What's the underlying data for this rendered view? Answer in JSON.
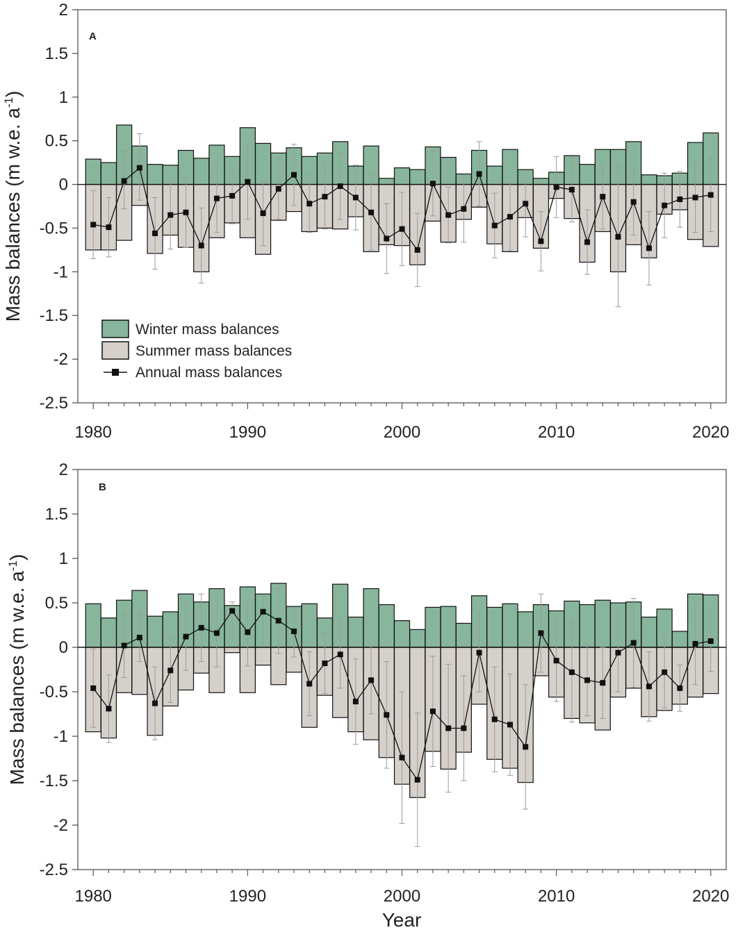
{
  "figure": {
    "colors": {
      "winter": "#88b69d",
      "summer": "#d6d0cb",
      "annual": "#111111",
      "error": "#9a9a9a",
      "axis": "#555555"
    },
    "legend": {
      "winter": "Winter mass balances",
      "summer": "Summer mass balances",
      "annual": "Annual mass balances"
    },
    "x_title": "Year"
  },
  "chart_data": [
    {
      "type": "bar",
      "panel_label": "A",
      "ylabel": "Mass balances (m w.e. a-1)",
      "ylabel_parts": [
        "Mass balances (m w.e. a",
        "-1",
        ")"
      ],
      "xlabel": "",
      "xlim": [
        1979,
        2021
      ],
      "ylim": [
        -2.5,
        2
      ],
      "x_ticks": [
        "1980",
        "1990",
        "2000",
        "2010",
        "2020"
      ],
      "y_ticks": [
        "2",
        "1.5",
        "1",
        "0.5",
        "0",
        "-0.5",
        "-1",
        "-1.5",
        "-2",
        "-2.5"
      ],
      "years": [
        1980,
        1981,
        1982,
        1983,
        1984,
        1985,
        1986,
        1987,
        1988,
        1989,
        1990,
        1991,
        1992,
        1993,
        1994,
        1995,
        1996,
        1997,
        1998,
        1999,
        2000,
        2001,
        2002,
        2003,
        2004,
        2005,
        2006,
        2007,
        2008,
        2009,
        2010,
        2011,
        2012,
        2013,
        2014,
        2015,
        2016,
        2017,
        2018,
        2019,
        2020
      ],
      "series": [
        {
          "name": "Winter mass balances",
          "kind": "bar-positive",
          "values": [
            0.29,
            0.25,
            0.68,
            0.44,
            0.23,
            0.22,
            0.39,
            0.3,
            0.45,
            0.32,
            0.65,
            0.47,
            0.36,
            0.42,
            0.32,
            0.36,
            0.49,
            0.21,
            0.44,
            0.07,
            0.19,
            0.17,
            0.43,
            0.31,
            0.12,
            0.39,
            0.21,
            0.4,
            0.17,
            0.07,
            0.14,
            0.33,
            0.23,
            0.4,
            0.4,
            0.49,
            0.11,
            0.1,
            0.13,
            0.48,
            0.59
          ]
        },
        {
          "name": "Summer mass balances",
          "kind": "bar-negative",
          "values": [
            -0.75,
            -0.75,
            -0.64,
            -0.24,
            -0.79,
            -0.58,
            -0.72,
            -1.0,
            -0.61,
            -0.44,
            -0.61,
            -0.8,
            -0.41,
            -0.31,
            -0.54,
            -0.5,
            -0.51,
            -0.37,
            -0.77,
            -0.69,
            -0.7,
            -0.92,
            -0.42,
            -0.66,
            -0.4,
            -0.26,
            -0.68,
            -0.77,
            -0.38,
            -0.73,
            -0.16,
            -0.39,
            -0.89,
            -0.54,
            -1.0,
            -0.69,
            -0.84,
            -0.34,
            -0.29,
            -0.63,
            -0.71
          ]
        },
        {
          "name": "Annual mass balances",
          "kind": "line",
          "values": [
            -0.46,
            -0.49,
            0.04,
            0.19,
            -0.56,
            -0.35,
            -0.32,
            -0.7,
            -0.16,
            -0.13,
            0.03,
            -0.33,
            -0.05,
            0.11,
            -0.22,
            -0.14,
            -0.02,
            -0.15,
            -0.32,
            -0.62,
            -0.51,
            -0.75,
            0.01,
            -0.35,
            -0.28,
            0.12,
            -0.47,
            -0.37,
            -0.22,
            -0.65,
            -0.03,
            -0.06,
            -0.66,
            -0.14,
            -0.6,
            -0.2,
            -0.73,
            -0.24,
            -0.17,
            -0.15,
            -0.12
          ]
        }
      ],
      "error_bars": [
        {
          "year": 1980,
          "low": -0.85,
          "high": -0.07
        },
        {
          "year": 1981,
          "low": -0.83,
          "high": -0.15
        },
        {
          "year": 1982,
          "low": -0.28,
          "high": 0.38
        },
        {
          "year": 1983,
          "low": -0.18,
          "high": 0.58
        },
        {
          "year": 1984,
          "low": -0.97,
          "high": -0.15
        },
        {
          "year": 1985,
          "low": -0.74,
          "high": 0.04
        },
        {
          "year": 1986,
          "low": -0.72,
          "high": 0.08
        },
        {
          "year": 1987,
          "low": -1.13,
          "high": -0.27
        },
        {
          "year": 1988,
          "low": -0.55,
          "high": 0.23
        },
        {
          "year": 1989,
          "low": -0.45,
          "high": 0.19
        },
        {
          "year": 1990,
          "low": -0.4,
          "high": 0.46
        },
        {
          "year": 1991,
          "low": -0.7,
          "high": 0.04
        },
        {
          "year": 1992,
          "low": -0.4,
          "high": 0.3
        },
        {
          "year": 1993,
          "low": -0.24,
          "high": 0.46
        },
        {
          "year": 1994,
          "low": -0.55,
          "high": 0.11
        },
        {
          "year": 1995,
          "low": -0.51,
          "high": 0.23
        },
        {
          "year": 1996,
          "low": -0.4,
          "high": 0.36
        },
        {
          "year": 1997,
          "low": -0.52,
          "high": 0.22
        },
        {
          "year": 1998,
          "low": -0.75,
          "high": 0.11
        },
        {
          "year": 1999,
          "low": -1.02,
          "high": -0.22
        },
        {
          "year": 2000,
          "low": -0.93,
          "high": -0.09
        },
        {
          "year": 2001,
          "low": -1.17,
          "high": -0.33
        },
        {
          "year": 2002,
          "low": -0.36,
          "high": 0.38
        },
        {
          "year": 2003,
          "low": -0.67,
          "high": -0.03
        },
        {
          "year": 2004,
          "low": -0.66,
          "high": 0.1
        },
        {
          "year": 2005,
          "low": -0.25,
          "high": 0.49
        },
        {
          "year": 2006,
          "low": -0.84,
          "high": -0.1
        },
        {
          "year": 2007,
          "low": -0.76,
          "high": 0.02
        },
        {
          "year": 2008,
          "low": -0.6,
          "high": 0.16
        },
        {
          "year": 2009,
          "low": -0.99,
          "high": -0.31
        },
        {
          "year": 2010,
          "low": -0.38,
          "high": 0.32
        },
        {
          "year": 2011,
          "low": -0.43,
          "high": 0.31
        },
        {
          "year": 2012,
          "low": -1.03,
          "high": -0.29
        },
        {
          "year": 2013,
          "low": -0.51,
          "high": 0.23
        },
        {
          "year": 2014,
          "low": -1.4,
          "high": 0.2
        },
        {
          "year": 2015,
          "low": -0.58,
          "high": 0.18
        },
        {
          "year": 2016,
          "low": -1.15,
          "high": -0.31
        },
        {
          "year": 2017,
          "low": -0.61,
          "high": 0.13
        },
        {
          "year": 2018,
          "low": -0.49,
          "high": 0.15
        },
        {
          "year": 2019,
          "low": -0.55,
          "high": 0.25
        },
        {
          "year": 2020,
          "low": -0.54,
          "high": 0.3
        }
      ]
    },
    {
      "type": "bar",
      "panel_label": "B",
      "ylabel": "Mass balances (m w.e. a-1)",
      "ylabel_parts": [
        "Mass balances (m w.e. a",
        "-1",
        ")"
      ],
      "xlabel": "Year",
      "xlim": [
        1979,
        2021
      ],
      "ylim": [
        -2.5,
        2
      ],
      "x_ticks": [
        "1980",
        "1990",
        "2000",
        "2010",
        "2020"
      ],
      "y_ticks": [
        "2",
        "1.5",
        "1",
        "0.5",
        "0",
        "-0.5",
        "-1",
        "-1.5",
        "-2",
        "-2.5"
      ],
      "years": [
        1980,
        1981,
        1982,
        1983,
        1984,
        1985,
        1986,
        1987,
        1988,
        1989,
        1990,
        1991,
        1992,
        1993,
        1994,
        1995,
        1996,
        1997,
        1998,
        1999,
        2000,
        2001,
        2002,
        2003,
        2004,
        2005,
        2006,
        2007,
        2008,
        2009,
        2010,
        2011,
        2012,
        2013,
        2014,
        2015,
        2016,
        2017,
        2018,
        2019,
        2020
      ],
      "series": [
        {
          "name": "Winter mass balances",
          "kind": "bar-positive",
          "values": [
            0.49,
            0.33,
            0.53,
            0.64,
            0.35,
            0.4,
            0.6,
            0.51,
            0.66,
            0.47,
            0.68,
            0.6,
            0.72,
            0.46,
            0.49,
            0.33,
            0.71,
            0.34,
            0.66,
            0.48,
            0.3,
            0.2,
            0.45,
            0.46,
            0.27,
            0.58,
            0.45,
            0.49,
            0.4,
            0.48,
            0.41,
            0.52,
            0.48,
            0.53,
            0.5,
            0.51,
            0.34,
            0.43,
            0.18,
            0.6,
            0.59
          ]
        },
        {
          "name": "Summer mass balances",
          "kind": "bar-negative",
          "values": [
            -0.95,
            -1.02,
            -0.51,
            -0.53,
            -0.99,
            -0.66,
            -0.48,
            -0.29,
            -0.51,
            -0.06,
            -0.51,
            -0.2,
            -0.42,
            -0.28,
            -0.9,
            -0.54,
            -0.79,
            -0.95,
            -1.04,
            -1.24,
            -1.54,
            -1.69,
            -1.17,
            -1.37,
            -1.18,
            -0.64,
            -1.26,
            -1.36,
            -1.52,
            -0.32,
            -0.56,
            -0.8,
            -0.85,
            -0.93,
            -0.56,
            -0.46,
            -0.78,
            -0.71,
            -0.64,
            -0.56,
            -0.52
          ]
        },
        {
          "name": "Annual mass balances",
          "kind": "line",
          "values": [
            -0.46,
            -0.69,
            0.02,
            0.11,
            -0.63,
            -0.26,
            0.12,
            0.22,
            0.16,
            0.41,
            0.17,
            0.4,
            0.3,
            0.18,
            -0.41,
            -0.18,
            -0.08,
            -0.61,
            -0.37,
            -0.76,
            -1.24,
            -1.49,
            -0.72,
            -0.91,
            -0.91,
            -0.06,
            -0.81,
            -0.87,
            -1.12,
            0.16,
            -0.15,
            -0.28,
            -0.37,
            -0.4,
            -0.06,
            0.05,
            -0.44,
            -0.28,
            -0.46,
            0.04,
            0.07
          ]
        }
      ],
      "error_bars": [
        {
          "year": 1980,
          "low": -0.9,
          "high": -0.02
        },
        {
          "year": 1981,
          "low": -1.07,
          "high": -0.31
        },
        {
          "year": 1982,
          "low": -0.34,
          "high": 0.38
        },
        {
          "year": 1983,
          "low": -0.16,
          "high": 0.38
        },
        {
          "year": 1984,
          "low": -1.04,
          "high": -0.22
        },
        {
          "year": 1985,
          "low": -0.62,
          "high": 0.1
        },
        {
          "year": 1986,
          "low": -0.26,
          "high": 0.5
        },
        {
          "year": 1987,
          "low": -0.16,
          "high": 0.6
        },
        {
          "year": 1988,
          "low": -0.22,
          "high": 0.54
        },
        {
          "year": 1989,
          "low": 0.09,
          "high": 0.51
        },
        {
          "year": 1990,
          "low": -0.21,
          "high": 0.53
        },
        {
          "year": 1991,
          "low": 0.01,
          "high": 0.57
        },
        {
          "year": 1992,
          "low": -0.07,
          "high": 0.67
        },
        {
          "year": 1993,
          "low": -0.11,
          "high": 0.45
        },
        {
          "year": 1994,
          "low": -0.77,
          "high": -0.05
        },
        {
          "year": 1995,
          "low": -0.52,
          "high": 0.16
        },
        {
          "year": 1996,
          "low": -0.46,
          "high": 0.3
        },
        {
          "year": 1997,
          "low": -1.09,
          "high": -0.13
        },
        {
          "year": 1998,
          "low": -0.75,
          "high": 0.01
        },
        {
          "year": 1999,
          "low": -1.36,
          "high": -0.16
        },
        {
          "year": 2000,
          "low": -1.98,
          "high": -0.5
        },
        {
          "year": 2001,
          "low": -2.24,
          "high": -0.74
        },
        {
          "year": 2002,
          "low": -1.34,
          "high": -0.1
        },
        {
          "year": 2003,
          "low": -1.63,
          "high": -0.19
        },
        {
          "year": 2004,
          "low": -1.5,
          "high": -0.32
        },
        {
          "year": 2005,
          "low": -0.5,
          "high": 0.38
        },
        {
          "year": 2006,
          "low": -1.4,
          "high": -0.22
        },
        {
          "year": 2007,
          "low": -1.44,
          "high": -0.3
        },
        {
          "year": 2008,
          "low": -1.82,
          "high": -0.42
        },
        {
          "year": 2009,
          "low": -0.28,
          "high": 0.6
        },
        {
          "year": 2010,
          "low": -0.61,
          "high": 0.31
        },
        {
          "year": 2011,
          "low": -0.84,
          "high": 0.28
        },
        {
          "year": 2012,
          "low": -0.77,
          "high": 0.03
        },
        {
          "year": 2013,
          "low": -0.8,
          "high": 0.0
        },
        {
          "year": 2014,
          "low": -0.5,
          "high": 0.38
        },
        {
          "year": 2015,
          "low": -0.45,
          "high": 0.55
        },
        {
          "year": 2016,
          "low": -0.83,
          "high": -0.05
        },
        {
          "year": 2017,
          "low": -0.68,
          "high": 0.12
        },
        {
          "year": 2018,
          "low": -0.72,
          "high": -0.2
        },
        {
          "year": 2019,
          "low": -0.42,
          "high": 0.5
        },
        {
          "year": 2020,
          "low": -0.27,
          "high": 0.41
        }
      ]
    }
  ]
}
